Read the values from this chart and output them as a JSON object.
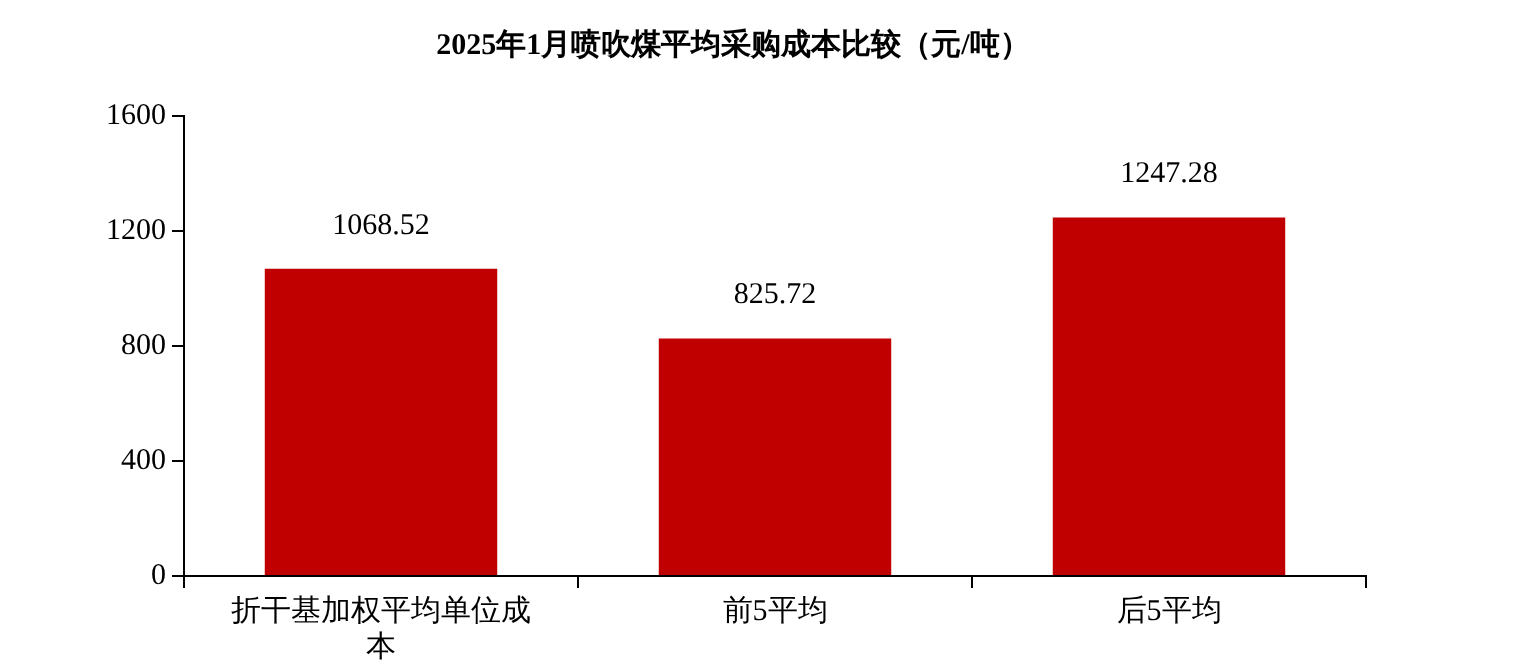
{
  "chart_data": {
    "type": "bar",
    "title": "2025年1月喷吹煤平均采购成本比较（元/吨）",
    "categories": [
      "折干基加权平均单位成本",
      "前5平均",
      "后5平均"
    ],
    "values": [
      1068.52,
      825.72,
      1247.28
    ],
    "color": "#c00000",
    "ylim": [
      0,
      1600
    ],
    "yticks": [
      0,
      400,
      800,
      1200,
      1600
    ],
    "grid": false,
    "legend": false,
    "data_labels": true
  }
}
